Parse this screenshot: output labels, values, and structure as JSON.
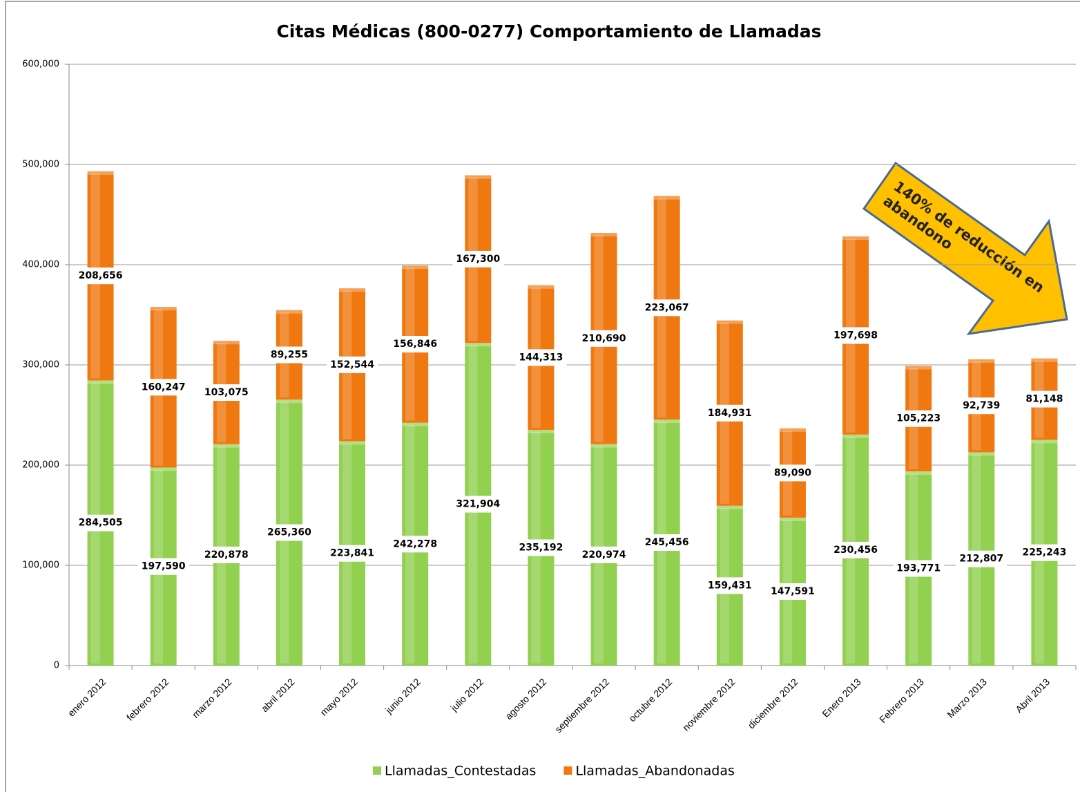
{
  "chart_data": {
    "type": "stacked_bar",
    "title": "Citas Médicas (800-0277) Comportamiento de Llamadas",
    "categories": [
      "enero 2012",
      "febrero 2012",
      "marzo 2012",
      "abril 2012",
      "mayo 2012",
      "junio 2012",
      "julio 2012",
      "agosto 2012",
      "septiembre 2012",
      "octubre 2012",
      "noviembre 2012",
      "diciembre 2012",
      "Enero 2013",
      "Febrero 2013",
      "Marzo 2013",
      "Abril 2013"
    ],
    "series": [
      {
        "name": "Llamadas_Contestadas",
        "color": "#92d050",
        "values": [
          284505,
          197590,
          220878,
          265360,
          223841,
          242278,
          321904,
          235192,
          220974,
          245456,
          159431,
          147591,
          230456,
          193771,
          212807,
          225243
        ],
        "value_labels": [
          "284,505",
          "197,590",
          "220,878",
          "265,360",
          "223,841",
          "242,278",
          "321,904",
          "235,192",
          "220,974",
          "245,456",
          "159,431",
          "147,591",
          "230,456",
          "193,771",
          "212,807",
          "225,243"
        ]
      },
      {
        "name": "Llamadas_Abandonadas",
        "color": "#f07810",
        "values": [
          208656,
          160247,
          103075,
          89255,
          152544,
          156846,
          167300,
          144313,
          210690,
          223067,
          184931,
          89090,
          197698,
          105223,
          92739,
          81148
        ],
        "value_labels": [
          "208,656",
          "160,247",
          "103,075",
          "89,255",
          "152,544",
          "156,846",
          "167,300",
          "144,313",
          "210,690",
          "223,067",
          "184,931",
          "89,090",
          "197,698",
          "105,223",
          "92,739",
          "81,148"
        ]
      }
    ],
    "ylim": [
      0,
      600000
    ],
    "yticks": [
      0,
      {
        "value": 100000,
        "label": "100,000"
      },
      {
        "value": 200000,
        "label": "200,000"
      },
      {
        "value": 300000,
        "label": "300,000"
      },
      {
        "value": 400000,
        "label": "400,000"
      },
      {
        "value": 500000,
        "label": "500,000"
      },
      {
        "value": 600000,
        "label": "600,000"
      }
    ],
    "grid": true,
    "legend": "bottom",
    "annotation": [
      "140% de reducción en",
      "abandono"
    ]
  }
}
